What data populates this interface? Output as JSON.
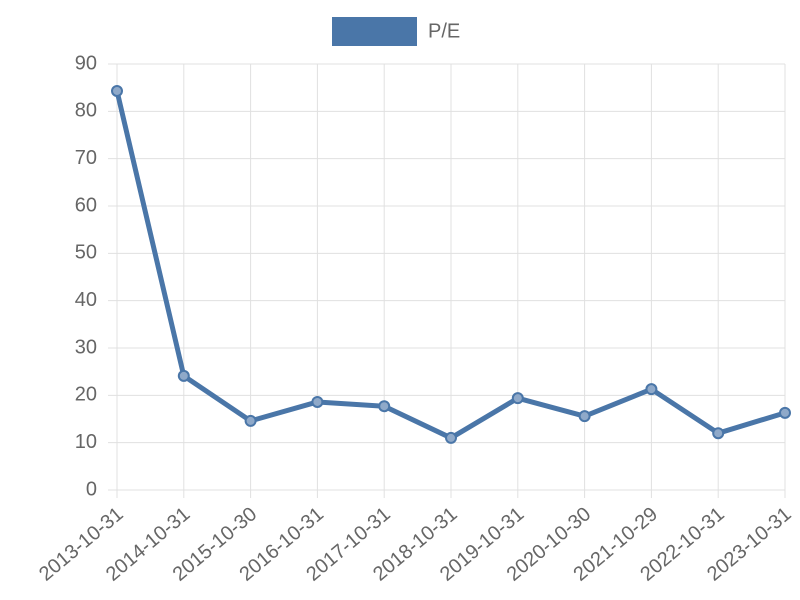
{
  "chart_data": {
    "type": "line",
    "categories": [
      "2013-10-31",
      "2014-10-31",
      "2015-10-30",
      "2016-10-31",
      "2017-10-31",
      "2018-10-31",
      "2019-10-31",
      "2020-10-30",
      "2021-10-29",
      "2022-10-31",
      "2023-10-31"
    ],
    "series": [
      {
        "name": "P/E",
        "color": "#4a76a8",
        "values": [
          84.3,
          24.1,
          14.6,
          18.6,
          17.7,
          11.0,
          19.4,
          15.6,
          21.3,
          12.0,
          16.3
        ]
      }
    ],
    "ylim": [
      0,
      90
    ],
    "yticks": [
      0,
      10,
      20,
      30,
      40,
      50,
      60,
      70,
      80,
      90
    ],
    "grid": true,
    "legend": "top"
  }
}
